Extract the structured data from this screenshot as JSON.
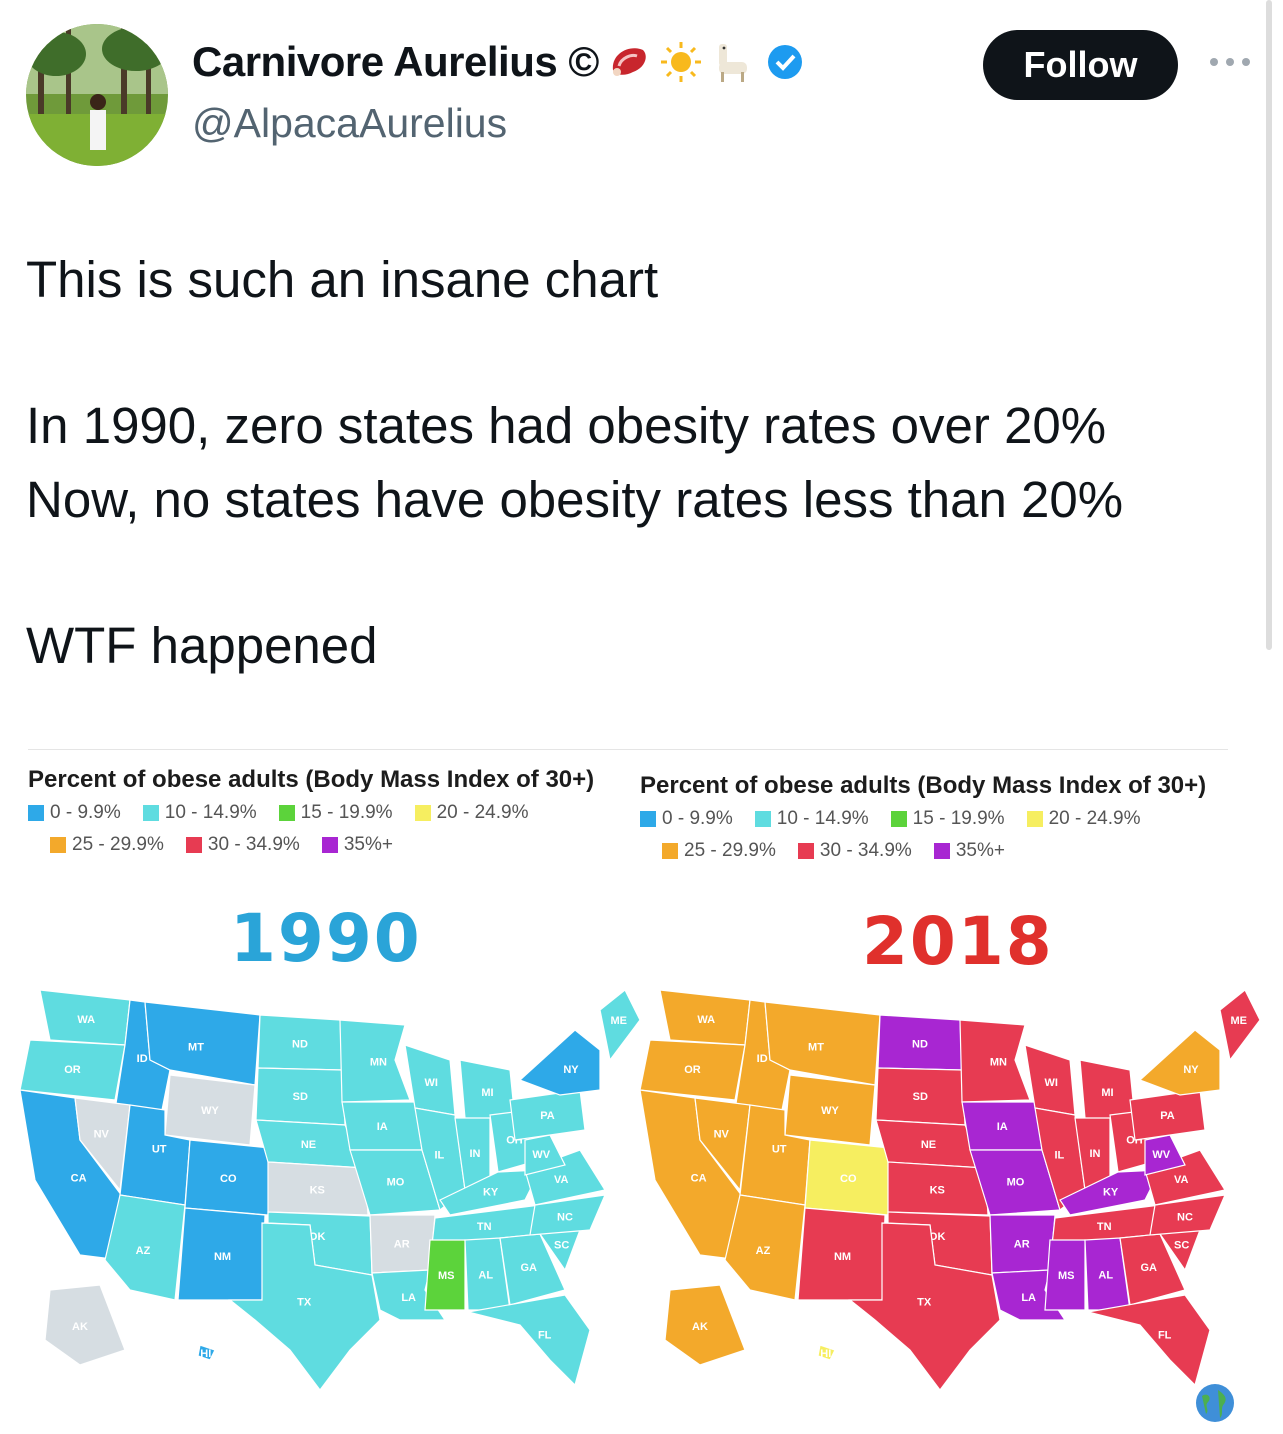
{
  "header": {
    "display_name": "Carnivore Aurelius ©",
    "handle": "@AlpacaAurelius",
    "follow_label": "Follow",
    "name_emojis": [
      "meat-icon",
      "sun-icon",
      "llama-icon",
      "verified-badge-icon"
    ]
  },
  "tweet": {
    "line1": "This is such an insane chart",
    "line2": "In 1990, zero states had obesity rates over 20%",
    "line3": "Now, no states have obesity rates less than 20%",
    "line4": "WTF happened"
  },
  "image": {
    "left": {
      "legend_title": "Percent of obese adults (Body Mass Index of 30+)",
      "year": "1990",
      "year_color": "#2aa4d8"
    },
    "right": {
      "legend_title": "Percent of obese adults (Body Mass Index of 30+)",
      "year": "2018",
      "year_color": "#e0302c"
    },
    "legend": [
      {
        "label": "0 - 9.9%",
        "color": "#2ea9e8"
      },
      {
        "label": "10 - 14.9%",
        "color": "#5fdce0"
      },
      {
        "label": "15 - 19.9%",
        "color": "#5cd33b"
      },
      {
        "label": "20 - 24.9%",
        "color": "#f6ee60"
      },
      {
        "label": "25 - 29.9%",
        "color": "#f3a92b"
      },
      {
        "label": "30 - 34.9%",
        "color": "#e73b52"
      },
      {
        "label": "35%+",
        "color": "#a826d2"
      }
    ]
  },
  "map_1990": {
    "states": [
      {
        "abbr": "WA",
        "color": "#5fdce0"
      },
      {
        "abbr": "OR",
        "color": "#5fdce0"
      },
      {
        "abbr": "CA",
        "color": "#2ea9e8"
      },
      {
        "abbr": "ID",
        "color": "#2ea9e8"
      },
      {
        "abbr": "NV",
        "color": "#d6dde2"
      },
      {
        "abbr": "MT",
        "color": "#2ea9e8"
      },
      {
        "abbr": "WY",
        "color": "#d6dde2"
      },
      {
        "abbr": "UT",
        "color": "#2ea9e8"
      },
      {
        "abbr": "AZ",
        "color": "#5fdce0"
      },
      {
        "abbr": "CO",
        "color": "#2ea9e8"
      },
      {
        "abbr": "NM",
        "color": "#2ea9e8"
      },
      {
        "abbr": "ND",
        "color": "#5fdce0"
      },
      {
        "abbr": "SD",
        "color": "#5fdce0"
      },
      {
        "abbr": "NE",
        "color": "#5fdce0"
      },
      {
        "abbr": "KS",
        "color": "#d6dde2"
      },
      {
        "abbr": "OK",
        "color": "#5fdce0"
      },
      {
        "abbr": "TX",
        "color": "#5fdce0"
      },
      {
        "abbr": "MN",
        "color": "#5fdce0"
      },
      {
        "abbr": "IA",
        "color": "#5fdce0"
      },
      {
        "abbr": "MO",
        "color": "#5fdce0"
      },
      {
        "abbr": "AR",
        "color": "#d6dde2"
      },
      {
        "abbr": "LA",
        "color": "#5fdce0"
      },
      {
        "abbr": "WI",
        "color": "#5fdce0"
      },
      {
        "abbr": "IL",
        "color": "#5fdce0"
      },
      {
        "abbr": "MI",
        "color": "#5fdce0"
      },
      {
        "abbr": "IN",
        "color": "#5fdce0"
      },
      {
        "abbr": "OH",
        "color": "#5fdce0"
      },
      {
        "abbr": "KY",
        "color": "#5fdce0"
      },
      {
        "abbr": "TN",
        "color": "#5fdce0"
      },
      {
        "abbr": "MS",
        "color": "#5cd33b"
      },
      {
        "abbr": "AL",
        "color": "#5fdce0"
      },
      {
        "abbr": "GA",
        "color": "#5fdce0"
      },
      {
        "abbr": "FL",
        "color": "#5fdce0"
      },
      {
        "abbr": "SC",
        "color": "#5fdce0"
      },
      {
        "abbr": "NC",
        "color": "#5fdce0"
      },
      {
        "abbr": "VA",
        "color": "#5fdce0"
      },
      {
        "abbr": "WV",
        "color": "#5fdce0"
      },
      {
        "abbr": "PA",
        "color": "#5fdce0"
      },
      {
        "abbr": "NY",
        "color": "#2ea9e8"
      },
      {
        "abbr": "ME",
        "color": "#5fdce0"
      },
      {
        "abbr": "AK",
        "color": "#d6dde2"
      },
      {
        "abbr": "HI",
        "color": "#2ea9e8"
      }
    ]
  },
  "map_2018": {
    "states": [
      {
        "abbr": "WA",
        "color": "#f3a92b"
      },
      {
        "abbr": "OR",
        "color": "#f3a92b"
      },
      {
        "abbr": "CA",
        "color": "#f3a92b"
      },
      {
        "abbr": "ID",
        "color": "#f3a92b"
      },
      {
        "abbr": "NV",
        "color": "#f3a92b"
      },
      {
        "abbr": "MT",
        "color": "#f3a92b"
      },
      {
        "abbr": "WY",
        "color": "#f3a92b"
      },
      {
        "abbr": "UT",
        "color": "#f3a92b"
      },
      {
        "abbr": "AZ",
        "color": "#f3a92b"
      },
      {
        "abbr": "CO",
        "color": "#f6ee60"
      },
      {
        "abbr": "NM",
        "color": "#e73b52"
      },
      {
        "abbr": "ND",
        "color": "#a826d2"
      },
      {
        "abbr": "SD",
        "color": "#e73b52"
      },
      {
        "abbr": "NE",
        "color": "#e73b52"
      },
      {
        "abbr": "KS",
        "color": "#e73b52"
      },
      {
        "abbr": "OK",
        "color": "#e73b52"
      },
      {
        "abbr": "TX",
        "color": "#e73b52"
      },
      {
        "abbr": "MN",
        "color": "#e73b52"
      },
      {
        "abbr": "IA",
        "color": "#a826d2"
      },
      {
        "abbr": "MO",
        "color": "#a826d2"
      },
      {
        "abbr": "AR",
        "color": "#a826d2"
      },
      {
        "abbr": "LA",
        "color": "#a826d2"
      },
      {
        "abbr": "WI",
        "color": "#e73b52"
      },
      {
        "abbr": "IL",
        "color": "#e73b52"
      },
      {
        "abbr": "MI",
        "color": "#e73b52"
      },
      {
        "abbr": "IN",
        "color": "#e73b52"
      },
      {
        "abbr": "OH",
        "color": "#e73b52"
      },
      {
        "abbr": "KY",
        "color": "#a826d2"
      },
      {
        "abbr": "TN",
        "color": "#e73b52"
      },
      {
        "abbr": "MS",
        "color": "#a826d2"
      },
      {
        "abbr": "AL",
        "color": "#a826d2"
      },
      {
        "abbr": "GA",
        "color": "#e73b52"
      },
      {
        "abbr": "FL",
        "color": "#e73b52"
      },
      {
        "abbr": "SC",
        "color": "#e73b52"
      },
      {
        "abbr": "NC",
        "color": "#e73b52"
      },
      {
        "abbr": "VA",
        "color": "#e73b52"
      },
      {
        "abbr": "WV",
        "color": "#a826d2"
      },
      {
        "abbr": "PA",
        "color": "#e73b52"
      },
      {
        "abbr": "NY",
        "color": "#f3a92b"
      },
      {
        "abbr": "ME",
        "color": "#e73b52"
      },
      {
        "abbr": "AK",
        "color": "#f3a92b"
      },
      {
        "abbr": "HI",
        "color": "#f6ee60"
      }
    ]
  }
}
